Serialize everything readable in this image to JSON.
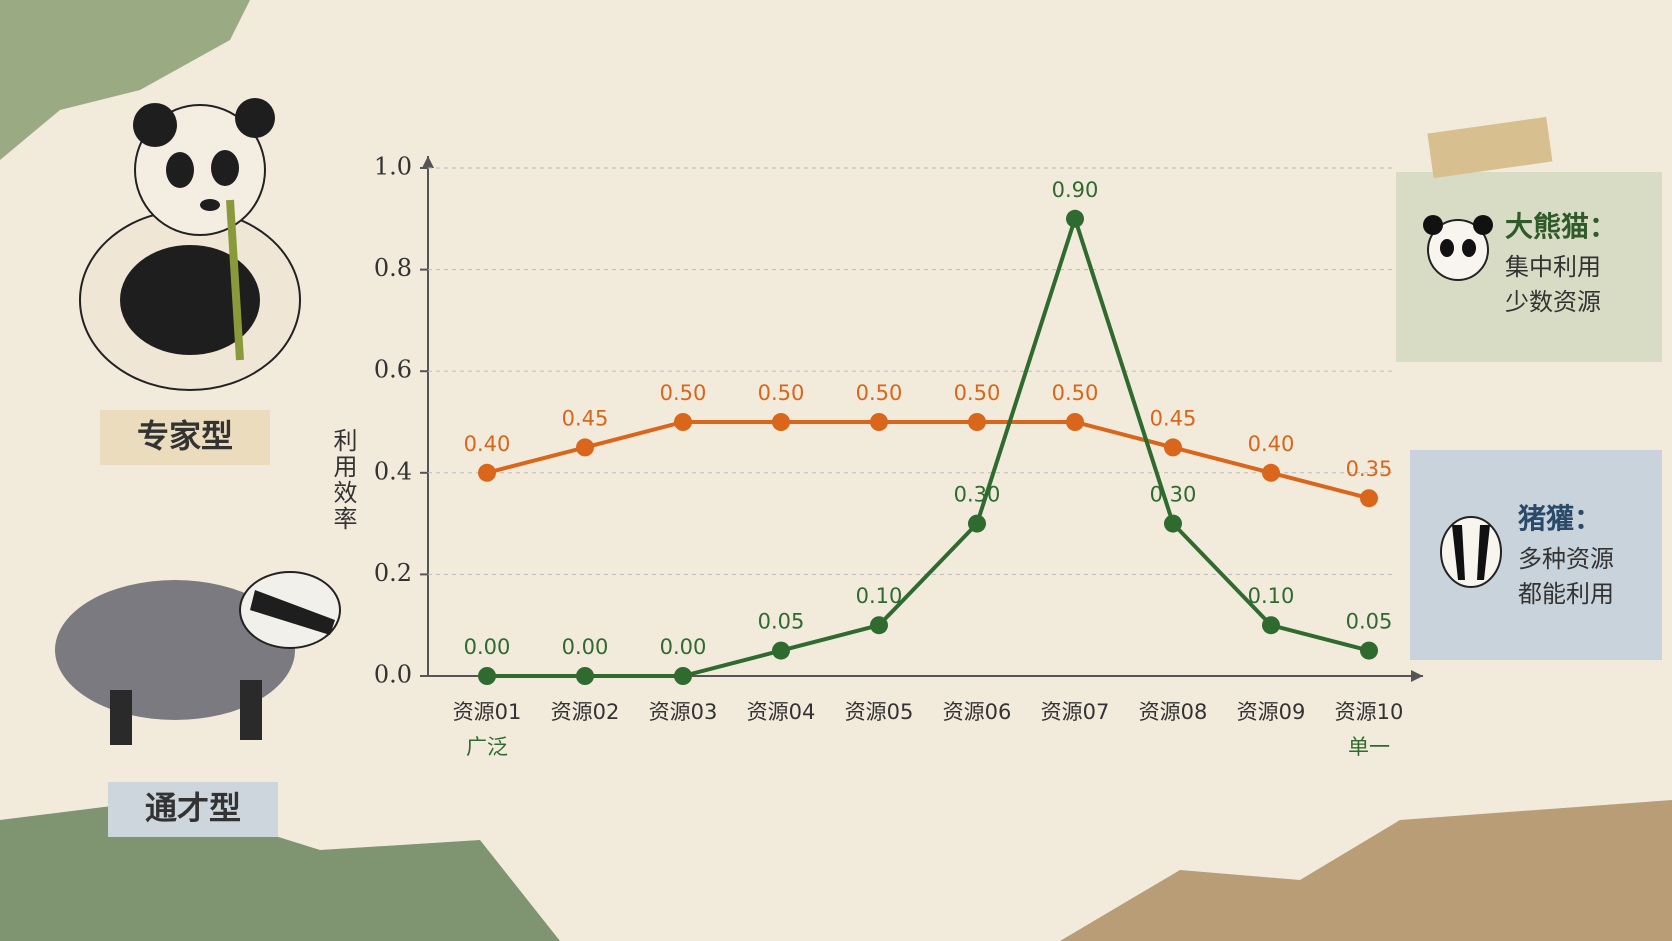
{
  "chart_data": {
    "type": "line",
    "y_label": "利用效率",
    "categories": [
      "资源01",
      "资源02",
      "资源03",
      "资源04",
      "资源05",
      "资源06",
      "资源07",
      "资源08",
      "资源09",
      "资源10"
    ],
    "x_end_labels": [
      "广泛",
      "单一"
    ],
    "ylim": [
      0,
      1
    ],
    "yticks": [
      {
        "value": 0,
        "label": "0.0"
      },
      0.2,
      0.4,
      0.6,
      0.8,
      {
        "value": 1,
        "label": "1.0"
      }
    ],
    "grid": true,
    "side_labels": [
      "专家型",
      "通才型"
    ],
    "series": [
      {
        "name": "大熊猫：",
        "color": "#2f6b2f",
        "description": [
          "集中利用",
          "少数资源"
        ],
        "values": [
          0,
          0,
          0,
          0.05,
          0.1,
          0.3,
          0.9,
          0.3,
          0.1,
          0.05
        ],
        "value_labels": [
          "0.00",
          "0.00",
          "0.00",
          "0.05",
          "0.10",
          "0.30",
          "0.90",
          "0.30",
          "0.10",
          "0.05"
        ]
      },
      {
        "name": "猪獾：",
        "color": "#d9661a",
        "description": [
          "多种资源",
          "都能利用"
        ],
        "values": [
          0.4,
          0.45,
          0.5,
          0.5,
          0.5,
          0.5,
          0.5,
          0.45,
          0.4,
          0.35
        ],
        "value_labels": [
          "0.40",
          "0.45",
          "0.50",
          "0.50",
          "0.50",
          "0.50",
          "0.50",
          "0.45",
          "0.40",
          "0.35"
        ]
      }
    ]
  }
}
